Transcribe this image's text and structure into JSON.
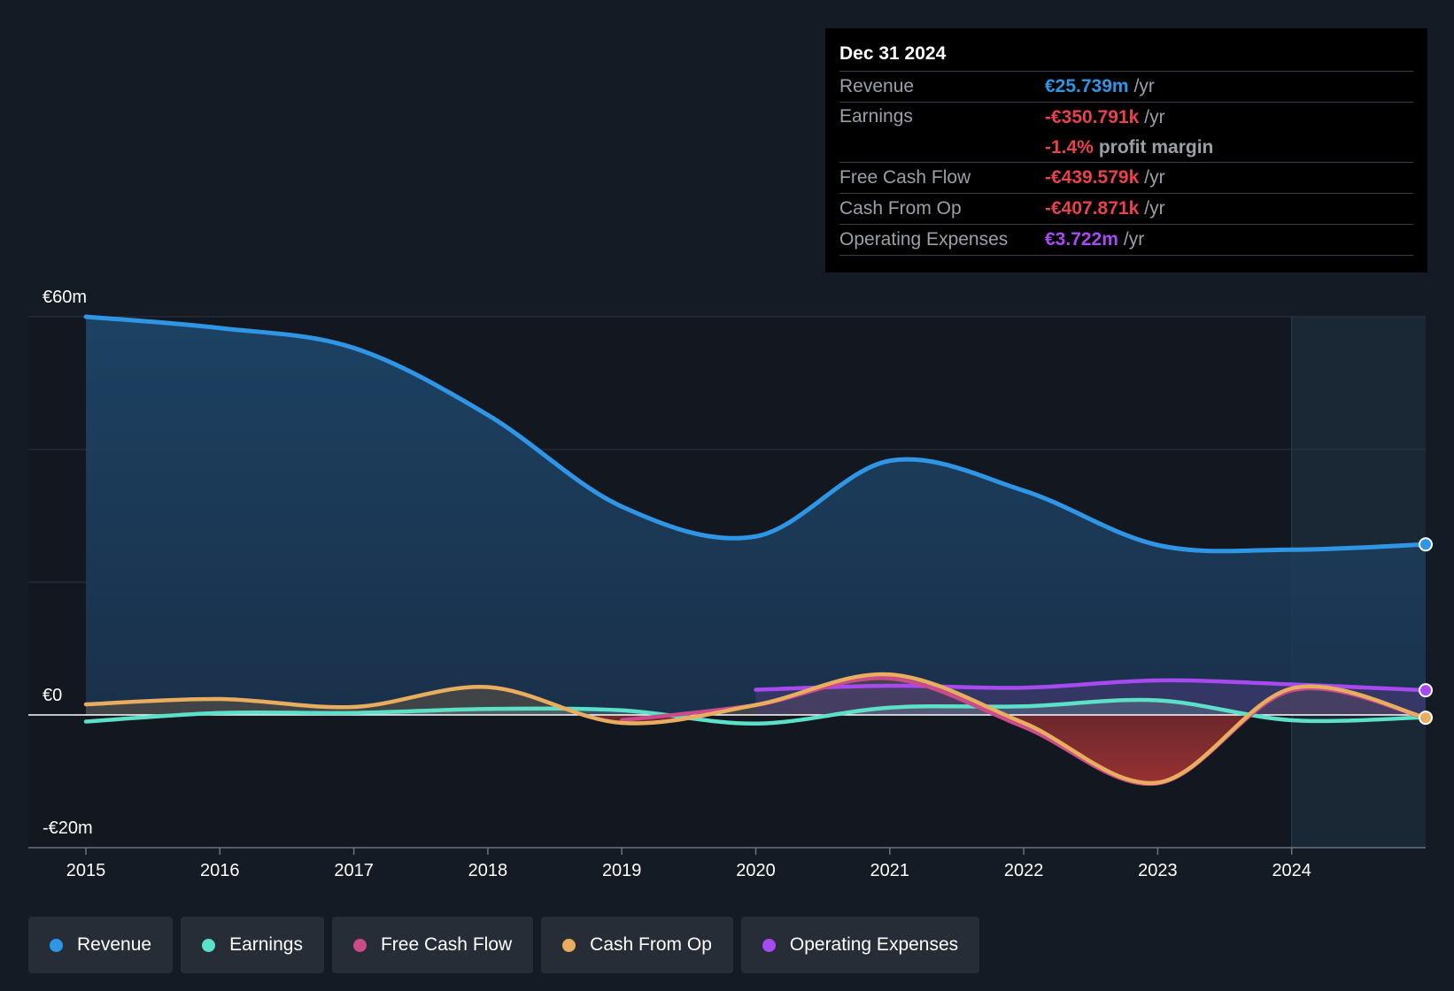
{
  "tooltip": {
    "date": "Dec 31 2024",
    "rows": [
      {
        "name": "Revenue",
        "value": "€25.739m",
        "unit": "/yr",
        "color": "#2f96e6"
      },
      {
        "name": "Earnings",
        "value": "-€350.791k",
        "unit": "/yr",
        "color": "#e8424d",
        "sub_value": "-1.4%",
        "sub_unit": "profit margin"
      },
      {
        "name": "Free Cash Flow",
        "value": "-€439.579k",
        "unit": "/yr",
        "color": "#e8424d"
      },
      {
        "name": "Cash From Op",
        "value": "-€407.871k",
        "unit": "/yr",
        "color": "#e8424d"
      },
      {
        "name": "Operating Expenses",
        "value": "€3.722m",
        "unit": "/yr",
        "color": "#a74bf0"
      }
    ]
  },
  "legend": [
    {
      "label": "Revenue",
      "color": "#2f96e6"
    },
    {
      "label": "Earnings",
      "color": "#5ce0c8"
    },
    {
      "label": "Free Cash Flow",
      "color": "#c94b8a"
    },
    {
      "label": "Cash From Op",
      "color": "#e8ad5e"
    },
    {
      "label": "Operating Expenses",
      "color": "#a74bf0"
    }
  ],
  "chart_data": {
    "type": "line",
    "title": "",
    "xlabel": "",
    "ylabel": "",
    "x_ticks": [
      "2015",
      "2016",
      "2017",
      "2018",
      "2019",
      "2020",
      "2021",
      "2022",
      "2023",
      "2024"
    ],
    "y_tick_labels": [
      {
        "label": "€60m",
        "value": 60
      },
      {
        "label": "€0",
        "value": 0
      },
      {
        "label": "-€20m",
        "value": -20
      }
    ],
    "xlim": [
      2015,
      2025
    ],
    "ylim": [
      -20,
      60
    ],
    "grid": true,
    "highlight_from": 2024,
    "series": [
      {
        "name": "Revenue",
        "color": "#2f96e6",
        "x": [
          2015,
          2016,
          2017,
          2018,
          2019,
          2020,
          2021,
          2022,
          2023,
          2024,
          2025
        ],
        "values": [
          60,
          58.3,
          55.3,
          45.2,
          31.4,
          26.9,
          38.3,
          33.8,
          25.6,
          24.9,
          25.7
        ]
      },
      {
        "name": "Earnings",
        "color": "#5ce0c8",
        "x": [
          2015,
          2016,
          2017,
          2018,
          2019,
          2020,
          2021,
          2022,
          2023,
          2024,
          2025
        ],
        "values": [
          -1.0,
          0.3,
          0.3,
          0.9,
          0.7,
          -1.3,
          1.1,
          1.3,
          2.2,
          -0.8,
          -0.35
        ]
      },
      {
        "name": "Free Cash Flow",
        "color": "#c94b8a",
        "x": [
          2019,
          2020,
          2021,
          2022,
          2023,
          2024,
          2025
        ],
        "values": [
          -0.8,
          1.5,
          5.5,
          -1.8,
          -10.3,
          3.7,
          -0.44
        ]
      },
      {
        "name": "Cash From Op",
        "color": "#e8ad5e",
        "x": [
          2015,
          2016,
          2017,
          2018,
          2019,
          2020,
          2021,
          2022,
          2023,
          2024,
          2025
        ],
        "values": [
          1.6,
          2.4,
          1.2,
          4.2,
          -1.2,
          1.5,
          6.1,
          -1.2,
          -10.2,
          4.0,
          -0.41
        ]
      },
      {
        "name": "Operating Expenses",
        "color": "#a74bf0",
        "x": [
          2020,
          2021,
          2022,
          2023,
          2024,
          2025
        ],
        "values": [
          3.8,
          4.4,
          4.1,
          5.2,
          4.6,
          3.72
        ]
      }
    ]
  }
}
